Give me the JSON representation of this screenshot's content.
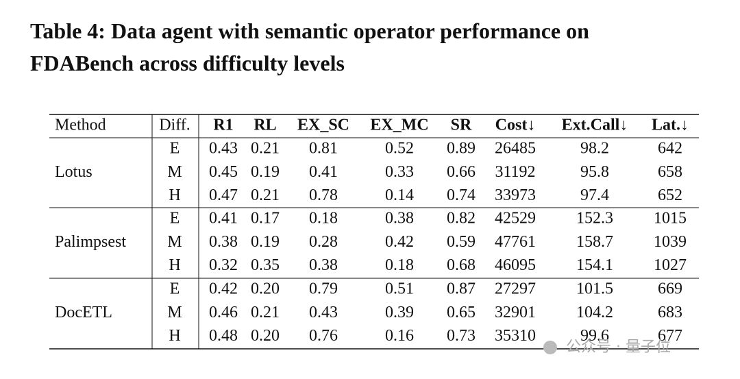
{
  "caption": {
    "line1": "Table 4: Data agent with semantic operator performance on",
    "line2": "FDABench across difficulty levels"
  },
  "table": {
    "columns": [
      "Method",
      "Diff.",
      "R1",
      "RL",
      "EX_SC",
      "EX_MC",
      "SR",
      "Cost↓",
      "Ext.Call↓",
      "Lat.↓"
    ],
    "groups": [
      {
        "method": "Lotus",
        "rows": [
          [
            "E",
            "0.43",
            "0.21",
            "0.81",
            "0.52",
            "0.89",
            "26485",
            "98.2",
            "642"
          ],
          [
            "M",
            "0.45",
            "0.19",
            "0.41",
            "0.33",
            "0.66",
            "31192",
            "95.8",
            "658"
          ],
          [
            "H",
            "0.47",
            "0.21",
            "0.78",
            "0.14",
            "0.74",
            "33973",
            "97.4",
            "652"
          ]
        ]
      },
      {
        "method": "Palimpsest",
        "rows": [
          [
            "E",
            "0.41",
            "0.17",
            "0.18",
            "0.38",
            "0.82",
            "42529",
            "152.3",
            "1015"
          ],
          [
            "M",
            "0.38",
            "0.19",
            "0.28",
            "0.42",
            "0.59",
            "47761",
            "158.7",
            "1039"
          ],
          [
            "H",
            "0.32",
            "0.35",
            "0.38",
            "0.18",
            "0.68",
            "46095",
            "154.1",
            "1027"
          ]
        ]
      },
      {
        "method": "DocETL",
        "rows": [
          [
            "E",
            "0.42",
            "0.20",
            "0.79",
            "0.51",
            "0.87",
            "27297",
            "101.5",
            "669"
          ],
          [
            "M",
            "0.46",
            "0.21",
            "0.43",
            "0.39",
            "0.65",
            "32901",
            "104.2",
            "683"
          ],
          [
            "H",
            "0.48",
            "0.20",
            "0.76",
            "0.16",
            "0.73",
            "35310",
            "99.6",
            "677"
          ]
        ]
      }
    ]
  },
  "watermark": "公众号 · 量子位"
}
